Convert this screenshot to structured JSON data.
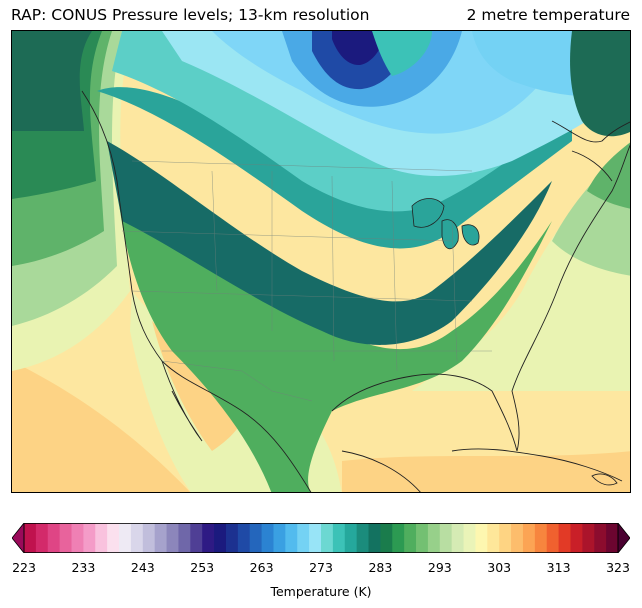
{
  "title": {
    "left": "RAP: CONUS Pressure levels; 13-km resolution",
    "right": "2 metre temperature"
  },
  "colorbar": {
    "label": "Temperature (K)",
    "min": 223,
    "max": 323,
    "tick_labels": [
      "223",
      "233",
      "243",
      "253",
      "263",
      "273",
      "283",
      "293",
      "303",
      "313",
      "323"
    ],
    "colors": [
      "#c0124e",
      "#d32a6a",
      "#df4585",
      "#e8639c",
      "#ef80b4",
      "#f49cc8",
      "#f9c2de",
      "#fbe0ee",
      "#eeeaf4",
      "#d9d6ea",
      "#c1bedc",
      "#a6a2cc",
      "#8c86bb",
      "#6f67a9",
      "#4f3f95",
      "#2e1a84",
      "#1b1a7e",
      "#1c3190",
      "#1f4aa6",
      "#2466bc",
      "#2b83d2",
      "#3aa0e2",
      "#52bbee",
      "#74d2f4",
      "#98e4f7",
      "#6cd8d2",
      "#3cc2b7",
      "#25a89c",
      "#1b8c7c",
      "#137260",
      "#1a7c4c",
      "#2c9a52",
      "#4fae5e",
      "#73c072",
      "#97d08a",
      "#b8dea2",
      "#d5ebb4",
      "#eaf4b8",
      "#fdf7b0",
      "#fee79a",
      "#fed483",
      "#fdbd6c",
      "#fca454",
      "#f7853e",
      "#f0612f",
      "#e23a26",
      "#c91f28",
      "#ab142b",
      "#8c0c2e",
      "#6c0530"
    ]
  },
  "map_palette": {
    "ocean_warm": "#fde7a0",
    "ocean_hot": "#fdd385",
    "ocean_mild": "#e9f3b2",
    "ocean_cool": "#a9d99a",
    "pacific_green": "#5fb36a",
    "pacific_dark": "#2a8a55",
    "coast_dark": "#1d6b55",
    "land_teal_dark": "#176b66",
    "land_teal": "#2aa49a",
    "land_aqua": "#5ccfc7",
    "land_cyan": "#9be6f3",
    "land_lightblue": "#7fd6f7",
    "land_blue": "#4aa9e6",
    "land_darkblue": "#1f4aa6",
    "land_navy": "#1b1a7e",
    "border": "#222222"
  }
}
